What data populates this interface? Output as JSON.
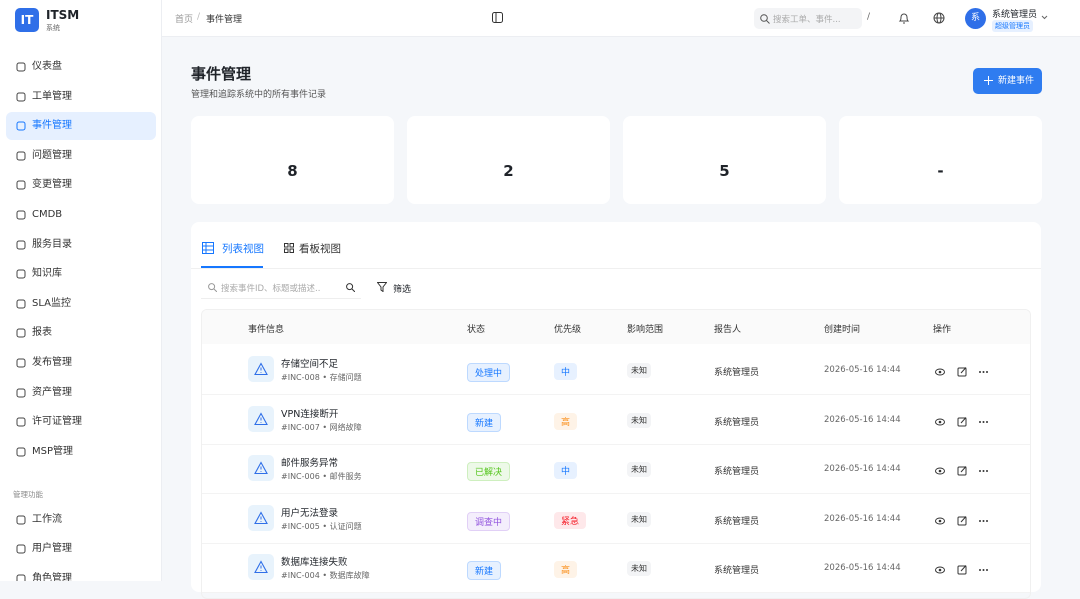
{
  "sidebar": {
    "logo": "IT",
    "app_name": "ITSM",
    "app_sub": "系统",
    "menu": [
      "仪表盘",
      "工单管理",
      "事件管理",
      "问题管理",
      "变更管理",
      "CMDB",
      "服务目录",
      "知识库",
      "SLA监控",
      "报表",
      "发布管理",
      "资产管理",
      "许可证管理",
      "MSP管理"
    ],
    "active": 2,
    "section": "管理功能",
    "admin_menu": [
      "工作流",
      "用户管理",
      "角色管理"
    ]
  },
  "header": {
    "breadcrumb": [
      "首页",
      "事件管理"
    ],
    "breadcrumb_sep": "/",
    "search_placeholder": "搜索工单、事件...",
    "search_key": "/",
    "avatar": "系",
    "user_name": "系统管理员",
    "user_role": "超级管理员"
  },
  "page": {
    "title": "事件管理",
    "subtitle": "管理和追踪系统中的所有事件记录",
    "new_button": "新建事件"
  },
  "stats": [
    "8",
    "2",
    "5",
    "-"
  ],
  "tabs": [
    "列表视图",
    "看板视图"
  ],
  "filter": {
    "search_placeholder": "搜索事件ID、标题或描述...",
    "filter_button": "筛选"
  },
  "table": {
    "columns": [
      "事件信息",
      "状态",
      "优先级",
      "影响范围",
      "报告人",
      "创建时间",
      "操作"
    ],
    "rows": [
      {
        "title": "存储空间不足",
        "meta": "#INC-008 • 存储问题",
        "status": "处理中",
        "status_color": "#1677ff",
        "priority": "中",
        "priority_color": "#1677ff",
        "impact": "未知",
        "reporter": "系统管理员",
        "created": "2026-05-16 14:44"
      },
      {
        "title": "VPN连接断开",
        "meta": "#INC-007 • 网络故障",
        "status": "新建",
        "status_color": "#1677ff",
        "priority": "高",
        "priority_color": "#fa8c16",
        "impact": "未知",
        "reporter": "系统管理员",
        "created": "2026-05-16 14:44"
      },
      {
        "title": "邮件服务异常",
        "meta": "#INC-006 • 邮件服务",
        "status": "已解决",
        "status_color": "#52c41a",
        "priority": "中",
        "priority_color": "#1677ff",
        "impact": "未知",
        "reporter": "系统管理员",
        "created": "2026-05-16 14:44"
      },
      {
        "title": "用户无法登录",
        "meta": "#INC-005 • 认证问题",
        "status": "调查中",
        "status_color": "#9254de",
        "priority": "紧急",
        "priority_color": "#f5222d",
        "impact": "未知",
        "reporter": "系统管理员",
        "created": "2026-05-16 14:44"
      },
      {
        "title": "数据库连接失败",
        "meta": "#INC-004 • 数据库故障",
        "status": "新建",
        "status_color": "#1677ff",
        "priority": "高",
        "priority_color": "#fa8c16",
        "impact": "未知",
        "reporter": "系统管理员",
        "created": "2026-05-16 14:44"
      }
    ]
  }
}
